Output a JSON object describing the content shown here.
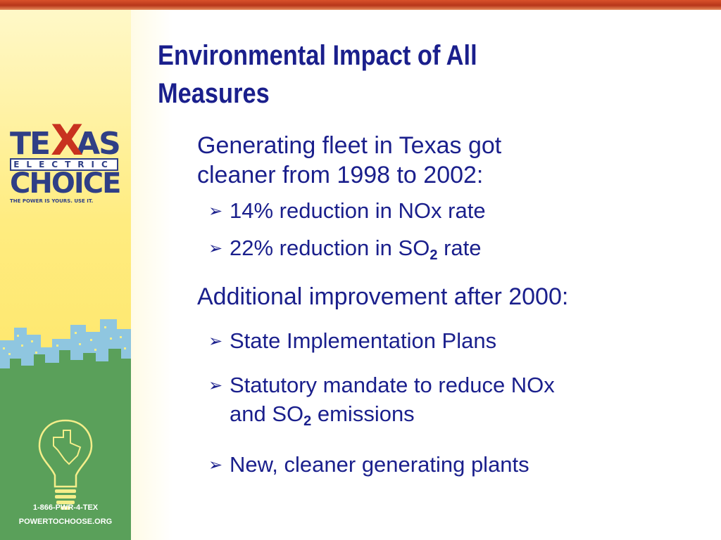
{
  "slide": {
    "title_line1": "Environmental Impact of All",
    "title_line2": "Measures",
    "brand": {
      "texas_left": "TE",
      "texas_x": "X",
      "texas_right": "AS",
      "electric": "ELECTRIC",
      "choice": "CHOICE",
      "tagline": "THE POWER IS YOURS. USE IT."
    },
    "contact": {
      "phone": "1-866-PWR-4-TEX",
      "website": "POWERTOCHOOSE.ORG"
    },
    "sections": [
      {
        "heading_line1": "Generating fleet in Texas got",
        "heading_line2": "cleaner from 1998 to 2002:",
        "bullets": [
          {
            "text": "14% reduction in NOx rate"
          },
          {
            "before": "22% reduction in SO",
            "sub": "2",
            "after": " rate"
          }
        ]
      },
      {
        "heading": "Additional improvement after 2000:",
        "bullets": [
          {
            "text": "State Implementation Plans"
          },
          {
            "line1": "Statutory mandate to reduce NOx",
            "line2_before": "and SO",
            "sub": "2",
            "line2_after": " emissions"
          },
          {
            "text": "New, cleaner generating plants"
          }
        ]
      }
    ],
    "bullet_glyph": "➢",
    "colors": {
      "title": "#1a1f8c",
      "body_text": "#1a1f8c",
      "top_bar": "#c0401f",
      "band_yellow": "#fde257",
      "band_green": "#5aa05a",
      "logo_blue": "#2f3f86",
      "logo_red": "#c8321f"
    }
  }
}
